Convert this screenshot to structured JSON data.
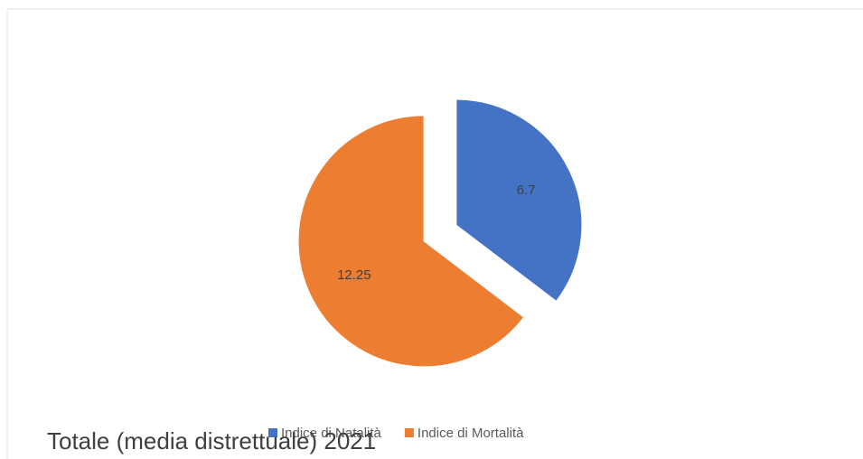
{
  "chart_data": {
    "type": "pie",
    "title": "Totale (media distrettuale) 2021",
    "categories": [
      "Indice di Natalità",
      "Indice di Mortalità"
    ],
    "values": [
      6.7,
      12.25
    ],
    "colors": [
      "#4472c4",
      "#ed7d31"
    ],
    "legend": "bottom"
  }
}
